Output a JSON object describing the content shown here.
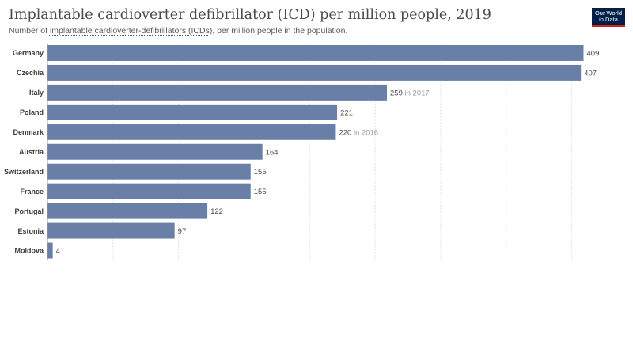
{
  "title": "Implantable cardioverter defibrillator (ICD) per million people, 2019",
  "subtitle": {
    "prefix": "Number of ",
    "link": "implantable cardioverter-defibrillators (ICDs)",
    "suffix": ", per million people in the population."
  },
  "logo": {
    "line1": "Our World",
    "line2": "in Data",
    "bg_color": "#002147",
    "accent_color": "#ce261e"
  },
  "chart_data": {
    "type": "bar",
    "orientation": "horizontal",
    "bar_color": "#6a7fa8",
    "categories": [
      "Germany",
      "Czechia",
      "Italy",
      "Poland",
      "Denmark",
      "Austria",
      "Switzerland",
      "France",
      "Portugal",
      "Estonia",
      "Moldova"
    ],
    "values": [
      409,
      407,
      259,
      221,
      220,
      164,
      155,
      155,
      122,
      97,
      4
    ],
    "notes": [
      "",
      "",
      "in 2017",
      "",
      "in 2016",
      "",
      "",
      "",
      "",
      "",
      ""
    ],
    "xlim": [
      0,
      409
    ],
    "grid_ticks": [
      0,
      50,
      100,
      150,
      200,
      250,
      300,
      350,
      400
    ],
    "grid": true
  }
}
